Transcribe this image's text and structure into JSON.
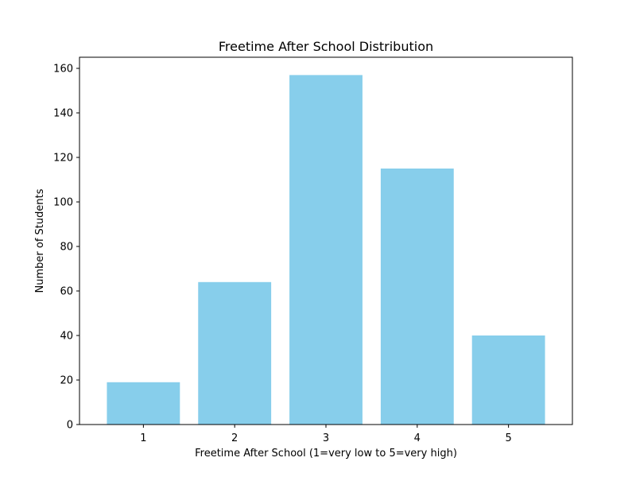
{
  "chart_data": {
    "type": "bar",
    "title": "Freetime After School Distribution",
    "xlabel": "Freetime After School (1=very low to 5=very high)",
    "ylabel": "Number of Students",
    "categories": [
      "1",
      "2",
      "3",
      "4",
      "5"
    ],
    "values": [
      19,
      64,
      157,
      115,
      40
    ],
    "ylim": [
      0,
      165
    ],
    "yticks": [
      0,
      20,
      40,
      60,
      80,
      100,
      120,
      140,
      160
    ],
    "grid": false,
    "bar_color": "#87ceeb"
  }
}
